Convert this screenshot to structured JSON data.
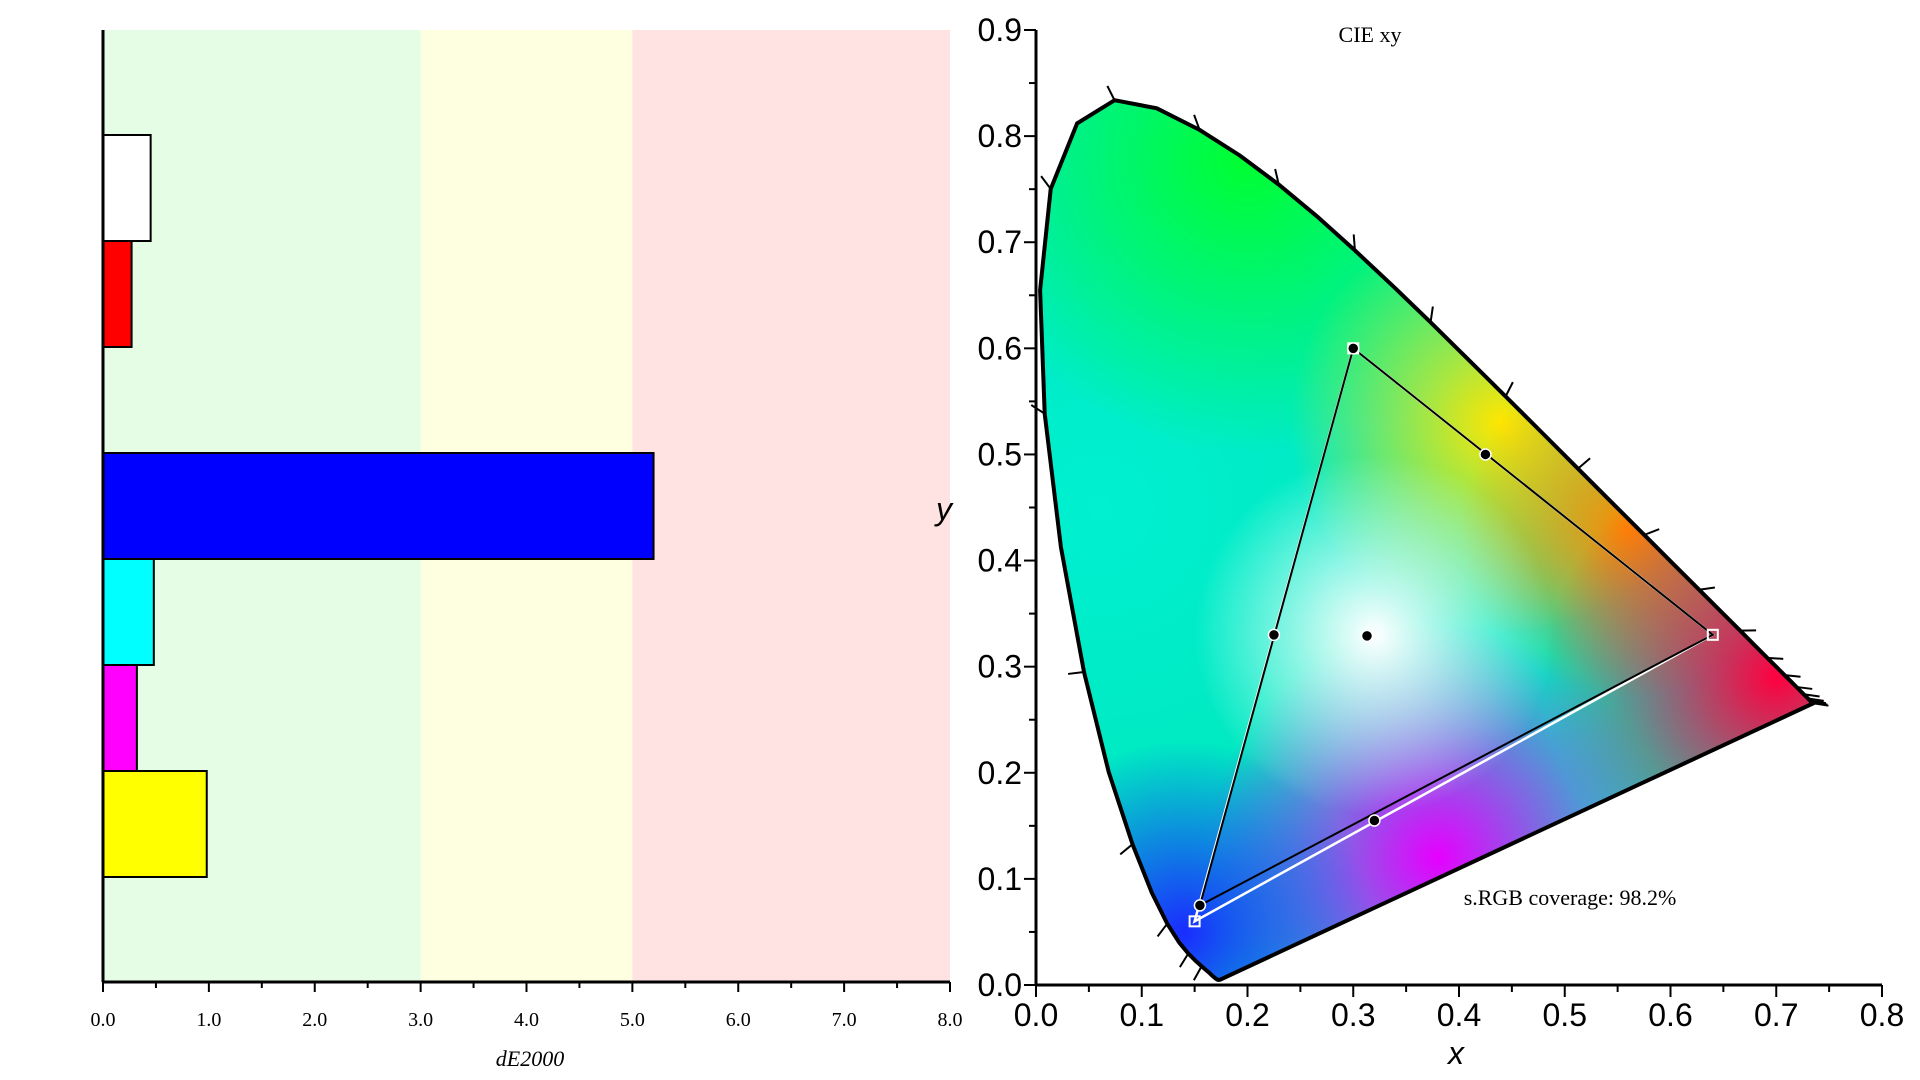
{
  "charts": [
    "dE2000 bar chart",
    "CIE xy chromaticity diagram"
  ],
  "chart_data": [
    {
      "type": "bar",
      "orientation": "horizontal",
      "xlabel": "dE2000",
      "ylabel": "",
      "title": "",
      "xlim": [
        0,
        8
      ],
      "xticks": [
        "0.0",
        "1.0",
        "2.0",
        "3.0",
        "4.0",
        "5.0",
        "6.0",
        "7.0",
        "8.0"
      ],
      "bands": [
        {
          "from": 0,
          "to": 3,
          "color": "#e4fde4"
        },
        {
          "from": 3,
          "to": 5,
          "color": "#fefee1"
        },
        {
          "from": 5,
          "to": 8,
          "color": "#ffe3e3"
        }
      ],
      "bars": [
        {
          "color": "#ffffff",
          "value": 0.45
        },
        {
          "color": "#ff0000",
          "value": 0.27
        },
        {
          "color": "#000000",
          "value": 0.0
        },
        {
          "color": "#0000ff",
          "value": 5.2
        },
        {
          "color": "#00ffff",
          "value": 0.48
        },
        {
          "color": "#ff00ff",
          "value": 0.32
        },
        {
          "color": "#ffff00",
          "value": 0.98
        }
      ]
    },
    {
      "type": "scatter",
      "title": "CIE xy",
      "xlabel": "x",
      "ylabel": "y",
      "xlim": [
        0,
        0.8
      ],
      "ylim": [
        0,
        0.9
      ],
      "xticks": [
        "0.0",
        "0.1",
        "0.2",
        "0.3",
        "0.4",
        "0.5",
        "0.6",
        "0.7",
        "0.8"
      ],
      "yticks": [
        "0.0",
        "0.1",
        "0.2",
        "0.3",
        "0.4",
        "0.5",
        "0.6",
        "0.7",
        "0.8",
        "0.9"
      ],
      "annotation": "s.RGB coverage: 98.2%",
      "reference_gamut": [
        [
          0.64,
          0.33
        ],
        [
          0.3,
          0.6
        ],
        [
          0.15,
          0.06
        ]
      ],
      "measured_gamut": [
        [
          0.64,
          0.33
        ],
        [
          0.3,
          0.6
        ],
        [
          0.155,
          0.075
        ]
      ],
      "measured_points": [
        {
          "x": 0.3,
          "y": 0.6
        },
        {
          "x": 0.425,
          "y": 0.5
        },
        {
          "x": 0.225,
          "y": 0.33
        },
        {
          "x": 0.313,
          "y": 0.329
        },
        {
          "x": 0.32,
          "y": 0.155
        },
        {
          "x": 0.155,
          "y": 0.075
        }
      ],
      "reference_points": [
        {
          "x": 0.64,
          "y": 0.33
        },
        {
          "x": 0.15,
          "y": 0.06
        },
        {
          "x": 0.3,
          "y": 0.6
        }
      ]
    }
  ]
}
